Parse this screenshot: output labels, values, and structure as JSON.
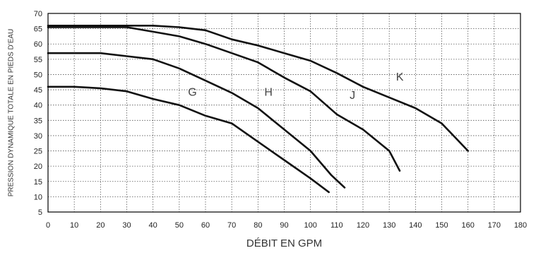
{
  "chart_data": {
    "type": "line",
    "title": "",
    "xlabel": "DÉBIT EN GPM",
    "ylabel": "PRESSION DYNAMIQUE TOTALE EN PIEDS D'EAU",
    "xlim": [
      0,
      180
    ],
    "ylim": [
      5,
      70
    ],
    "x_ticks": [
      0,
      10,
      20,
      30,
      40,
      50,
      60,
      70,
      80,
      90,
      100,
      110,
      120,
      130,
      140,
      150,
      160,
      170,
      180
    ],
    "y_ticks": [
      5,
      10,
      15,
      20,
      25,
      30,
      35,
      40,
      45,
      50,
      55,
      60,
      65,
      70
    ],
    "grid": true,
    "legend": "none",
    "line_color": "#111111",
    "series": [
      {
        "name": "G",
        "points": [
          [
            0,
            46
          ],
          [
            10,
            46
          ],
          [
            20,
            45.5
          ],
          [
            30,
            44.5
          ],
          [
            40,
            42
          ],
          [
            50,
            40
          ],
          [
            60,
            36.5
          ],
          [
            70,
            34
          ],
          [
            80,
            28
          ],
          [
            90,
            22
          ],
          [
            100,
            16
          ],
          [
            107,
            11.5
          ]
        ]
      },
      {
        "name": "H",
        "points": [
          [
            0,
            57
          ],
          [
            10,
            57
          ],
          [
            20,
            57
          ],
          [
            30,
            56
          ],
          [
            40,
            55
          ],
          [
            50,
            52
          ],
          [
            60,
            48
          ],
          [
            70,
            44
          ],
          [
            80,
            39
          ],
          [
            90,
            32
          ],
          [
            100,
            25
          ],
          [
            108,
            17
          ],
          [
            113,
            13
          ]
        ]
      },
      {
        "name": "J",
        "points": [
          [
            0,
            65.5
          ],
          [
            10,
            65.5
          ],
          [
            20,
            65.5
          ],
          [
            30,
            65.5
          ],
          [
            40,
            64
          ],
          [
            50,
            62.5
          ],
          [
            60,
            60
          ],
          [
            70,
            57
          ],
          [
            80,
            54
          ],
          [
            90,
            49
          ],
          [
            100,
            44.5
          ],
          [
            110,
            37
          ],
          [
            120,
            32
          ],
          [
            130,
            25
          ],
          [
            134,
            18.5
          ]
        ]
      },
      {
        "name": "K",
        "points": [
          [
            0,
            66
          ],
          [
            10,
            66
          ],
          [
            20,
            66
          ],
          [
            30,
            66
          ],
          [
            40,
            66
          ],
          [
            50,
            65.5
          ],
          [
            60,
            64.5
          ],
          [
            70,
            61.5
          ],
          [
            80,
            59.5
          ],
          [
            90,
            57
          ],
          [
            100,
            54.5
          ],
          [
            110,
            50.5
          ],
          [
            120,
            46
          ],
          [
            130,
            42.5
          ],
          [
            140,
            39
          ],
          [
            150,
            34
          ],
          [
            160,
            25
          ]
        ]
      }
    ],
    "annotations": [
      {
        "text": "G",
        "x": 55,
        "y": 43
      },
      {
        "text": "H",
        "x": 84,
        "y": 43
      },
      {
        "text": "J",
        "x": 116,
        "y": 42
      },
      {
        "text": "K",
        "x": 134,
        "y": 48
      }
    ]
  }
}
